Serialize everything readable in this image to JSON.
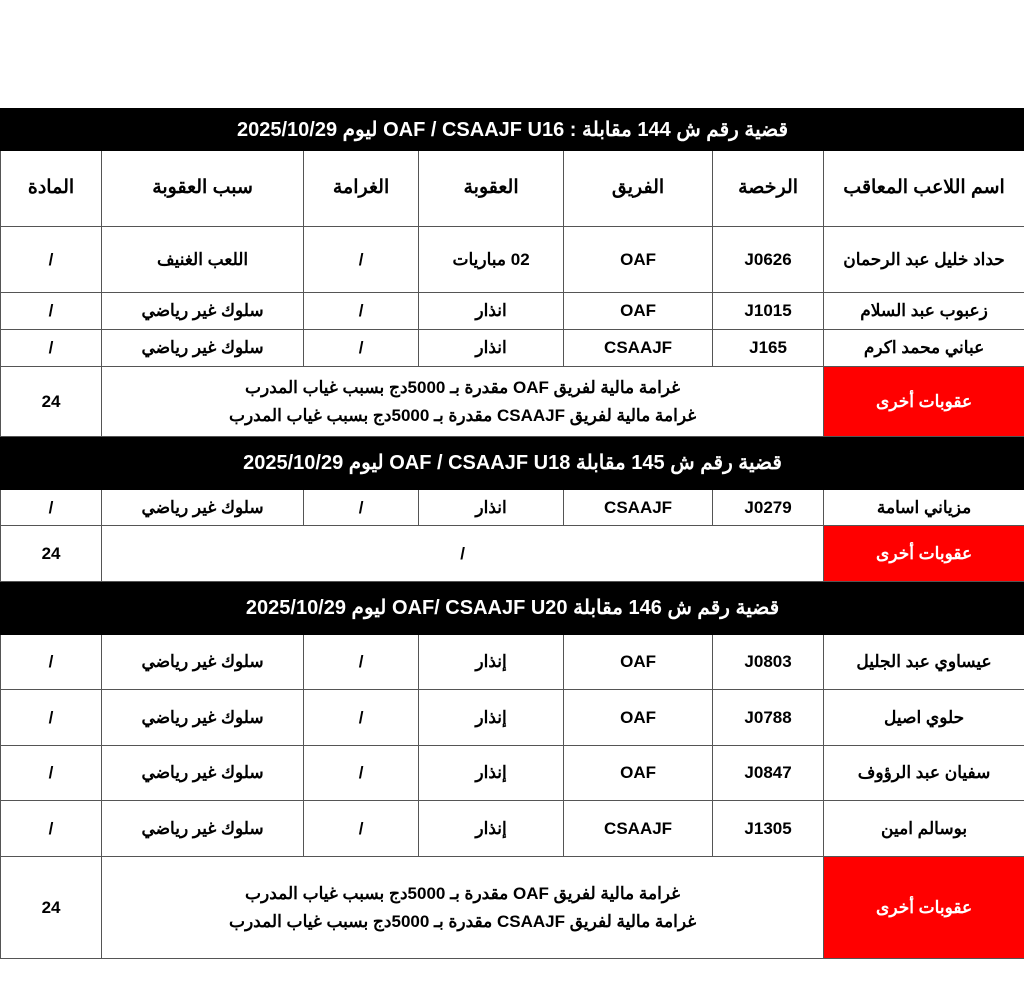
{
  "headers": [
    "اسم اللاعب المعاقب",
    "الرخصة",
    "الفريق",
    "العقوبة",
    "الغرامة",
    "سبب العقوبة",
    "المادة"
  ],
  "other_label": "عقوبات أخرى",
  "other_color": "#ff0000",
  "cases": [
    {
      "title": "قضية رقم ش 144 مقابلة : OAF / CSAAJF U16 ليوم 2025/10/29",
      "show_headers": true,
      "rows": [
        [
          "حداد خليل عبد الرحمان",
          "J0626",
          "OAF",
          "02 مباريات",
          "/",
          "اللعب الغنيف",
          "/"
        ],
        [
          "زعبوب عبد السلام",
          "J1015",
          "OAF",
          "انذار",
          "/",
          "سلوك غير رياضي",
          "/"
        ],
        [
          "عباني محمد اكرم",
          "J165",
          "CSAAJF",
          "انذار",
          "/",
          "سلوك غير رياضي",
          "/"
        ]
      ],
      "other": {
        "lines": [
          "غرامة مالية لفريق OAF مقدرة بـ 5000دج بسبب غياب المدرب",
          "غرامة مالية لفريق CSAAJF مقدرة بـ 5000دج بسبب غياب المدرب"
        ],
        "article": "24"
      }
    },
    {
      "title": "قضية رقم ش 145 مقابلة OAF / CSAAJF U18 ليوم 2025/10/29",
      "show_headers": false,
      "rows": [
        [
          "مزياني اسامة",
          "J0279",
          "CSAAJF",
          "انذار",
          "/",
          "سلوك غير رياضي",
          "/"
        ]
      ],
      "other": {
        "lines": [
          "/"
        ],
        "article": "24"
      }
    },
    {
      "title": "قضية رقم ش 146 مقابلة OAF/ CSAAJF U20 ليوم 2025/10/29",
      "show_headers": false,
      "rows": [
        [
          "عيساوي عبد الجليل",
          "J0803",
          "OAF",
          "إنذار",
          "/",
          "سلوك غير رياضي",
          "/"
        ],
        [
          "حلوي اصيل",
          "J0788",
          "OAF",
          "إنذار",
          "/",
          "سلوك غير رياضي",
          "/"
        ],
        [
          "سفيان عبد الرؤوف",
          "J0847",
          "OAF",
          "إنذار",
          "/",
          "سلوك غير رياضي",
          "/"
        ],
        [
          "بوسالم امين",
          "J1305",
          "CSAAJF",
          "إنذار",
          "/",
          "سلوك غير رياضي",
          "/"
        ]
      ],
      "other": {
        "lines": [
          "غرامة مالية لفريق OAF مقدرة بـ 5000دج بسبب غياب المدرب",
          "غرامة مالية لفريق CSAAJF مقدرة بـ 5000دج بسبب غياب المدرب"
        ],
        "article": "24"
      }
    }
  ]
}
